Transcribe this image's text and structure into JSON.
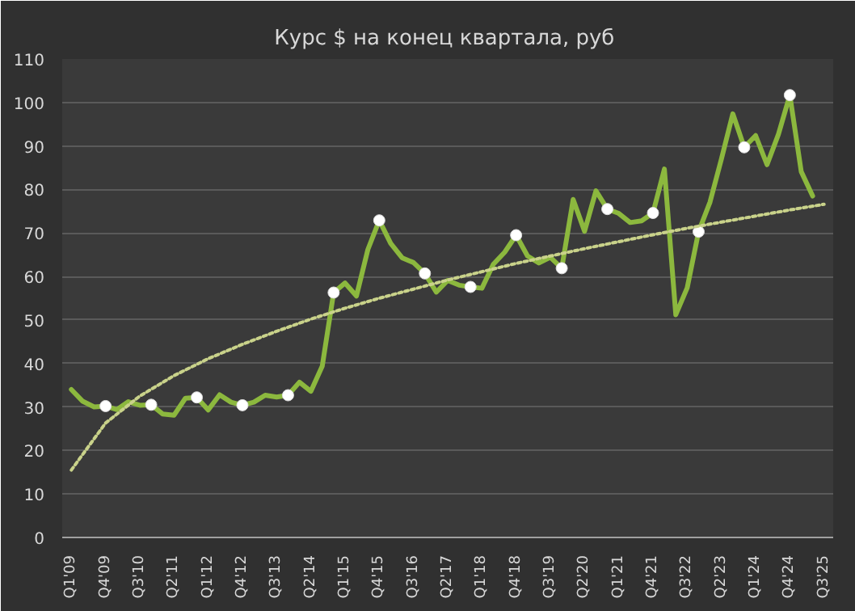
{
  "chart_data": {
    "type": "line",
    "title": "Курс $ на конец квартала,  руб",
    "categories": [
      "Q1'09",
      null,
      null,
      "Q4'09",
      null,
      null,
      "Q3'10",
      null,
      null,
      "Q2'11",
      null,
      null,
      "Q1'12",
      null,
      null,
      "Q4'12",
      null,
      null,
      "Q3'13",
      null,
      null,
      "Q2'14",
      null,
      null,
      "Q1'15",
      null,
      null,
      "Q4'15",
      null,
      null,
      "Q3'16",
      null,
      null,
      "Q2'17",
      null,
      null,
      "Q1'18",
      null,
      null,
      "Q4'18",
      null,
      null,
      "Q3'19",
      null,
      null,
      "Q2'20",
      null,
      null,
      "Q1'21",
      null,
      null,
      "Q4'21",
      null,
      null,
      "Q3'22",
      null,
      null,
      "Q2'23",
      null,
      null,
      "Q1'24",
      null,
      null,
      "Q4'24",
      null,
      null,
      "Q3'25"
    ],
    "series": [
      {
        "color": "#8cb83e",
        "line_style": "solid",
        "marker": "none",
        "values": [
          34.0,
          31.3,
          30.0,
          30.2,
          29.4,
          31.2,
          30.4,
          30.5,
          28.4,
          28.1,
          32.0,
          32.2,
          29.3,
          32.8,
          31.1,
          30.4,
          31.1,
          32.7,
          32.3,
          32.7,
          35.7,
          33.6,
          39.4,
          56.3,
          58.5,
          55.5,
          66.2,
          72.9,
          67.6,
          64.3,
          63.2,
          60.7,
          56.4,
          59.1,
          58.0,
          57.6,
          57.3,
          62.8,
          65.6,
          69.5,
          64.7,
          63.1,
          64.4,
          61.9,
          77.7,
          70.4,
          79.7,
          75.5,
          74.5,
          72.4,
          72.8,
          74.6,
          84.7,
          51.2,
          57.4,
          70.3,
          77.1,
          87.0,
          97.4,
          89.7,
          92.4,
          85.7,
          92.7,
          101.7,
          84.1,
          78.5,
          null
        ]
      },
      {
        "type": "scatter",
        "color": "#ffffff",
        "marker": "circle",
        "values": [
          null,
          null,
          null,
          30.2,
          null,
          null,
          null,
          30.5,
          null,
          null,
          null,
          32.2,
          null,
          null,
          null,
          30.4,
          null,
          null,
          null,
          32.7,
          null,
          null,
          null,
          56.3,
          null,
          null,
          null,
          72.9,
          null,
          null,
          null,
          60.7,
          null,
          null,
          null,
          57.6,
          null,
          null,
          null,
          69.5,
          null,
          null,
          null,
          61.9,
          null,
          null,
          null,
          75.5,
          null,
          null,
          null,
          74.6,
          null,
          null,
          null,
          70.3,
          null,
          null,
          null,
          89.7,
          null,
          null,
          null,
          101.7,
          null,
          null,
          null
        ]
      },
      {
        "type": "line",
        "color": "#c9d28a",
        "line_style": "dotted",
        "marker": "none",
        "x": [
          "Q1'09",
          "Q4'09",
          "Q3'10",
          "Q2'11",
          "Q1'12",
          "Q4'12",
          "Q3'13",
          "Q2'14",
          "Q1'15",
          "Q4'15",
          "Q3'16",
          "Q2'17",
          "Q1'18",
          "Q4'18",
          "Q3'19",
          "Q2'20",
          "Q1'21",
          "Q4'21",
          "Q3'22",
          "Q2'23",
          "Q1'24",
          "Q4'24",
          "Q3'25"
        ],
        "values": [
          15.5,
          26.3,
          32.5,
          37.2,
          41.1,
          44.4,
          47.4,
          50.2,
          52.7,
          55.0,
          57.1,
          59.2,
          61.1,
          63.0,
          64.7,
          66.4,
          68.0,
          69.6,
          71.1,
          72.5,
          73.9,
          75.3,
          76.6
        ]
      }
    ],
    "ylim": [
      0,
      110
    ],
    "yticks": [
      0,
      10,
      20,
      30,
      40,
      50,
      60,
      70,
      80,
      90,
      100,
      110
    ],
    "grid": "y"
  }
}
